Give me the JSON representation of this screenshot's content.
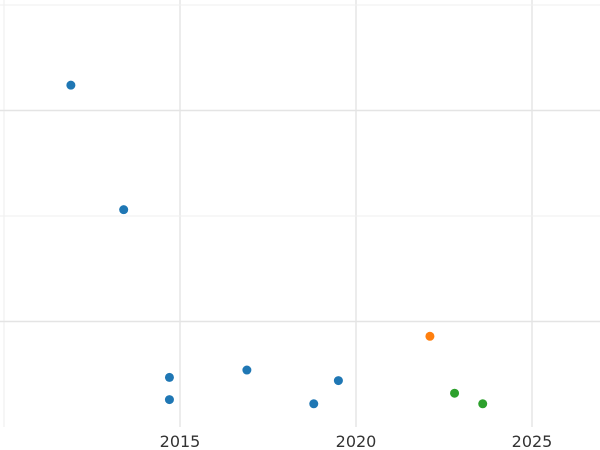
{
  "chart_data": {
    "type": "scatter",
    "title": "",
    "xlabel": "",
    "ylabel": "",
    "xlim": [
      2010,
      2027
    ],
    "ylim": [
      0,
      4
    ],
    "x_ticks": [
      "2015",
      "2020",
      "2025"
    ],
    "y_ticks_labeled": false,
    "grid": true,
    "series": [
      {
        "color": "#1f77b4",
        "points": [
          {
            "x": 2011.9,
            "y": 3.24
          },
          {
            "x": 2013.4,
            "y": 2.06
          },
          {
            "x": 2014.7,
            "y": 0.47
          },
          {
            "x": 2014.7,
            "y": 0.26
          },
          {
            "x": 2016.9,
            "y": 0.54
          },
          {
            "x": 2018.8,
            "y": 0.22
          },
          {
            "x": 2019.5,
            "y": 0.44
          }
        ]
      },
      {
        "color": "#ff7f0e",
        "points": [
          {
            "x": 2022.1,
            "y": 0.86
          }
        ]
      },
      {
        "color": "#2ca02c",
        "points": [
          {
            "x": 2022.8,
            "y": 0.32
          },
          {
            "x": 2023.6,
            "y": 0.22
          }
        ]
      }
    ]
  }
}
